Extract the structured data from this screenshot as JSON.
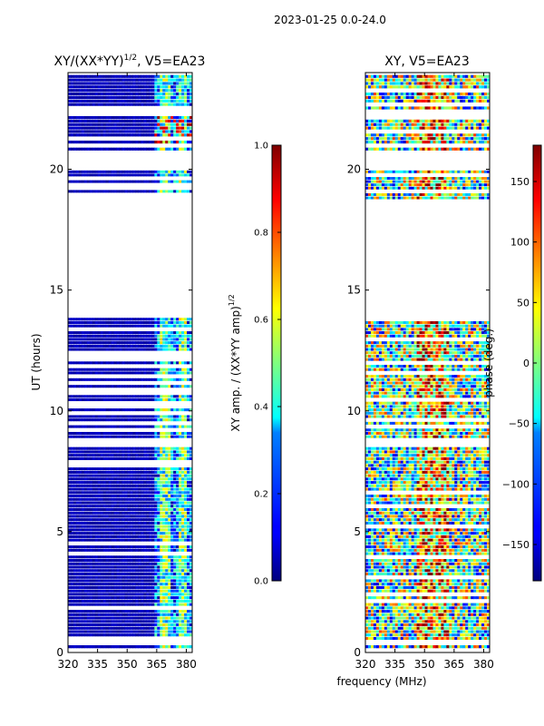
{
  "suptitle": "2023-01-25 0.0-24.0",
  "xlabel_shared": "frequency (MHz)",
  "chart_data": [
    {
      "type": "heatmap",
      "title_prefix": "XY/(XX*YY)",
      "title_sup": "1/2",
      "title_suffix": ", V5=EA23",
      "ylabel": "UT (hours)",
      "xlim": [
        320,
        383
      ],
      "ylim": [
        0,
        24
      ],
      "xticks": [
        320,
        335,
        350,
        365,
        380
      ],
      "yticks": [
        0,
        5,
        10,
        15,
        20
      ],
      "valid_bands_hours": [
        [
          0.15,
          0.3
        ],
        [
          0.5,
          8.5
        ],
        [
          8.85,
          13.85
        ],
        [
          18.6,
          19.95
        ],
        [
          20.75,
          22.2
        ],
        [
          22.45,
          23.9
        ]
      ],
      "colorbar": {
        "label_prefix": "XY amp. / (XX*YY amp)",
        "label_sup": "1/2",
        "range": [
          0.0,
          1.0
        ],
        "ticks": [
          "0.0",
          "0.2",
          "0.4",
          "0.6",
          "0.8",
          "1.0"
        ]
      }
    },
    {
      "type": "heatmap",
      "title": "XY, V5=EA23",
      "xlim": [
        320,
        383
      ],
      "ylim": [
        0,
        24
      ],
      "xticks": [
        320,
        335,
        350,
        365,
        380
      ],
      "yticks": [
        0,
        5,
        10,
        15,
        20
      ],
      "valid_bands_hours": [
        [
          0.15,
          0.3
        ],
        [
          0.5,
          8.5
        ],
        [
          8.85,
          13.85
        ],
        [
          18.6,
          19.95
        ],
        [
          20.75,
          22.2
        ],
        [
          22.45,
          23.9
        ]
      ],
      "colorbar": {
        "label": "phase (deg.)",
        "range": [
          -180,
          180
        ],
        "ticks": [
          "−150",
          "−100",
          "−50",
          "0",
          "50",
          "100",
          "150"
        ],
        "tick_values": [
          -150,
          -100,
          -50,
          0,
          50,
          100,
          150
        ]
      }
    }
  ]
}
